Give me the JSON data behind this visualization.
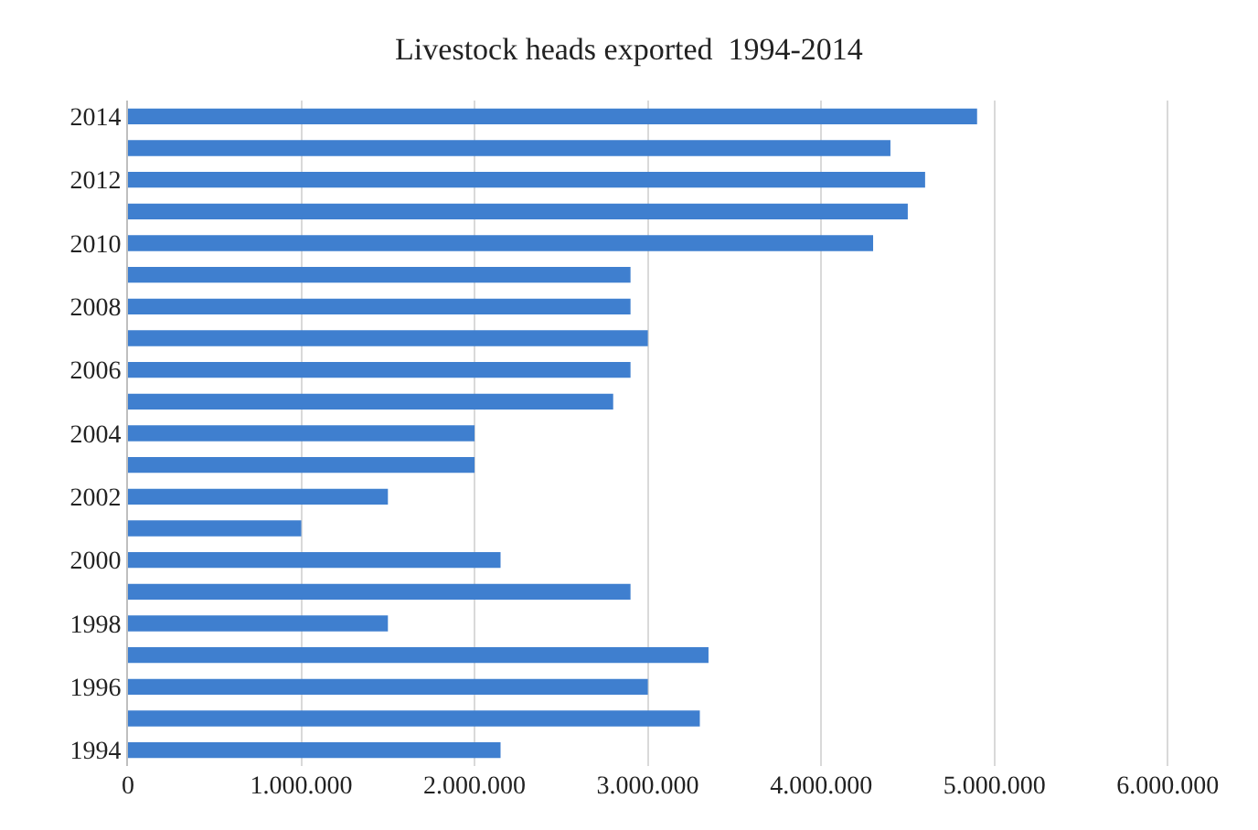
{
  "chart_data": {
    "type": "bar",
    "orientation": "horizontal",
    "title": "Livestock heads exported  1994-2014",
    "categories": [
      "2014",
      null,
      "2012",
      null,
      "2010",
      null,
      "2008",
      null,
      "2006",
      null,
      "2004",
      null,
      "2002",
      null,
      "2000",
      null,
      "1998",
      null,
      "1996",
      null,
      "1994"
    ],
    "values": [
      4900000,
      4400000,
      4600000,
      4500000,
      4300000,
      2900000,
      2900000,
      3000000,
      2900000,
      2800000,
      2000000,
      2000000,
      1500000,
      1000000,
      2150000,
      2900000,
      1500000,
      3350000,
      3000000,
      3300000,
      2150000
    ],
    "color": "#3f7fcf",
    "xlim": [
      0,
      6500000
    ],
    "xticks": [
      0,
      {
        "value": 1000000,
        "label": "1.000.000"
      },
      {
        "value": 2000000,
        "label": "2.000.000"
      },
      {
        "value": 3000000,
        "label": "3.000.000"
      },
      {
        "value": 4000000,
        "label": "4.000.000"
      },
      {
        "value": 5000000,
        "label": "5.000.000"
      },
      {
        "value": 6000000,
        "label": "6.000.000"
      }
    ],
    "grid": "x",
    "legend": false
  }
}
